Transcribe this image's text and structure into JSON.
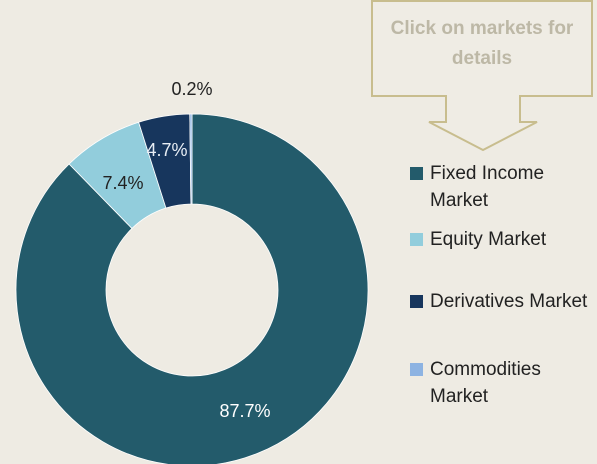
{
  "callout": "Click on markets for details",
  "chart_data": {
    "type": "donut",
    "categories": [
      "Fixed Income Market",
      "Equity Market",
      "Derivatives Market",
      "Commodities Market"
    ],
    "values": [
      87.7,
      7.4,
      4.7,
      0.2
    ],
    "value_labels": [
      "87.7%",
      "7.4%",
      "4.7%",
      "0.2%"
    ],
    "colors": [
      "#235b6b",
      "#92cddc",
      "#17365d",
      "#8db3e2"
    ],
    "legend": "right"
  }
}
